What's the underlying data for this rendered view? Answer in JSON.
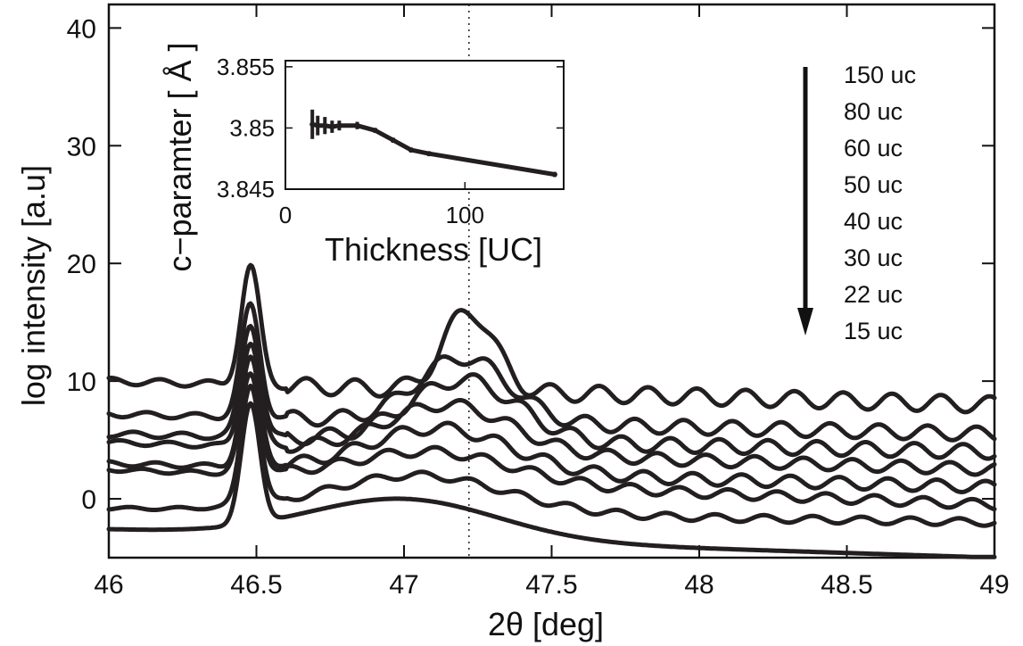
{
  "chart_data": [
    {
      "type": "line",
      "title": "",
      "xlabel": "2θ [deg]",
      "ylabel": "log intensity [a.u]",
      "xlim": [
        46,
        49
      ],
      "ylim": [
        -5,
        42
      ],
      "x_ticks": [
        "46",
        "46.5",
        "47",
        "47.5",
        "48",
        "48.5",
        "49"
      ],
      "y_ticks": [
        "0",
        "10",
        "20",
        "30",
        "40"
      ],
      "reference_line_x": 47.22,
      "legend": {
        "placement": "top-right",
        "entries": [
          "150 uc",
          "80 uc",
          "60 uc",
          "50 uc",
          "40 uc",
          "30 uc",
          "22 uc",
          "15 uc"
        ],
        "arrow": "down"
      },
      "substrate_peak_x": 46.48,
      "series": [
        {
          "name": "150 uc",
          "substrate_peak": 20.0,
          "base_left": 10.0,
          "base_right": 8.0,
          "film_peak_x": 47.22,
          "film_peak": 16.0,
          "film_width": 0.12,
          "fringe_amp": 0.7
        },
        {
          "name": "80 uc",
          "substrate_peak": 16.7,
          "base_left": 7.2,
          "base_right": 5.5,
          "film_peak_x": 47.2,
          "film_peak": 12.0,
          "film_width": 0.22,
          "fringe_amp": 0.6
        },
        {
          "name": "60 uc",
          "substrate_peak": 15.1,
          "base_left": 5.5,
          "base_right": 4.0,
          "film_peak_x": 47.2,
          "film_peak": 10.1,
          "film_width": 0.26,
          "fringe_amp": 0.6
        },
        {
          "name": "50 uc",
          "substrate_peak": 13.6,
          "base_left": 4.8,
          "base_right": 2.5,
          "film_peak_x": 47.15,
          "film_peak": 8.0,
          "film_width": 0.3,
          "fringe_amp": 0.5
        },
        {
          "name": "40 uc",
          "substrate_peak": 12.1,
          "base_left": 3.0,
          "base_right": 1.0,
          "film_peak_x": 47.12,
          "film_peak": 6.0,
          "film_width": 0.34,
          "fringe_amp": 0.5
        },
        {
          "name": "30 uc",
          "substrate_peak": 10.9,
          "base_left": 2.5,
          "base_right": -0.5,
          "film_peak_x": 47.1,
          "film_peak": 4.0,
          "film_width": 0.38,
          "fringe_amp": 0.4
        },
        {
          "name": "22 uc",
          "substrate_peak": 9.4,
          "base_left": -0.8,
          "base_right": -2.0,
          "film_peak_x": 47.05,
          "film_peak": 2.0,
          "film_width": 0.42,
          "fringe_amp": 0.3
        },
        {
          "name": "15 uc",
          "substrate_peak": 7.6,
          "base_left": -2.6,
          "base_right": -5.0,
          "film_peak_x": 47.0,
          "film_peak": 0.0,
          "film_width": 0.45,
          "fringe_amp": 0.0
        }
      ]
    },
    {
      "type": "line",
      "title": "",
      "xlabel": "Thickness [UC]",
      "ylabel": "c−paramter [ Å ]",
      "xlim": [
        0,
        155
      ],
      "ylim": [
        3.845,
        3.8555
      ],
      "x_ticks": [
        "0",
        "100"
      ],
      "y_ticks": [
        "3.845",
        "3.85",
        "3.855"
      ],
      "x": [
        15,
        18,
        22,
        26,
        30,
        40,
        50,
        60,
        70,
        80,
        150
      ],
      "y": [
        3.8503,
        3.8502,
        3.8502,
        3.8501,
        3.8502,
        3.8502,
        3.8498,
        3.849,
        3.8482,
        3.8479,
        3.8462
      ],
      "err": [
        0.0012,
        0.0008,
        0.0007,
        0.0005,
        0.0004,
        0.0003,
        0.0002,
        0.0002,
        0.0002,
        0.0002,
        0.0002
      ]
    }
  ]
}
